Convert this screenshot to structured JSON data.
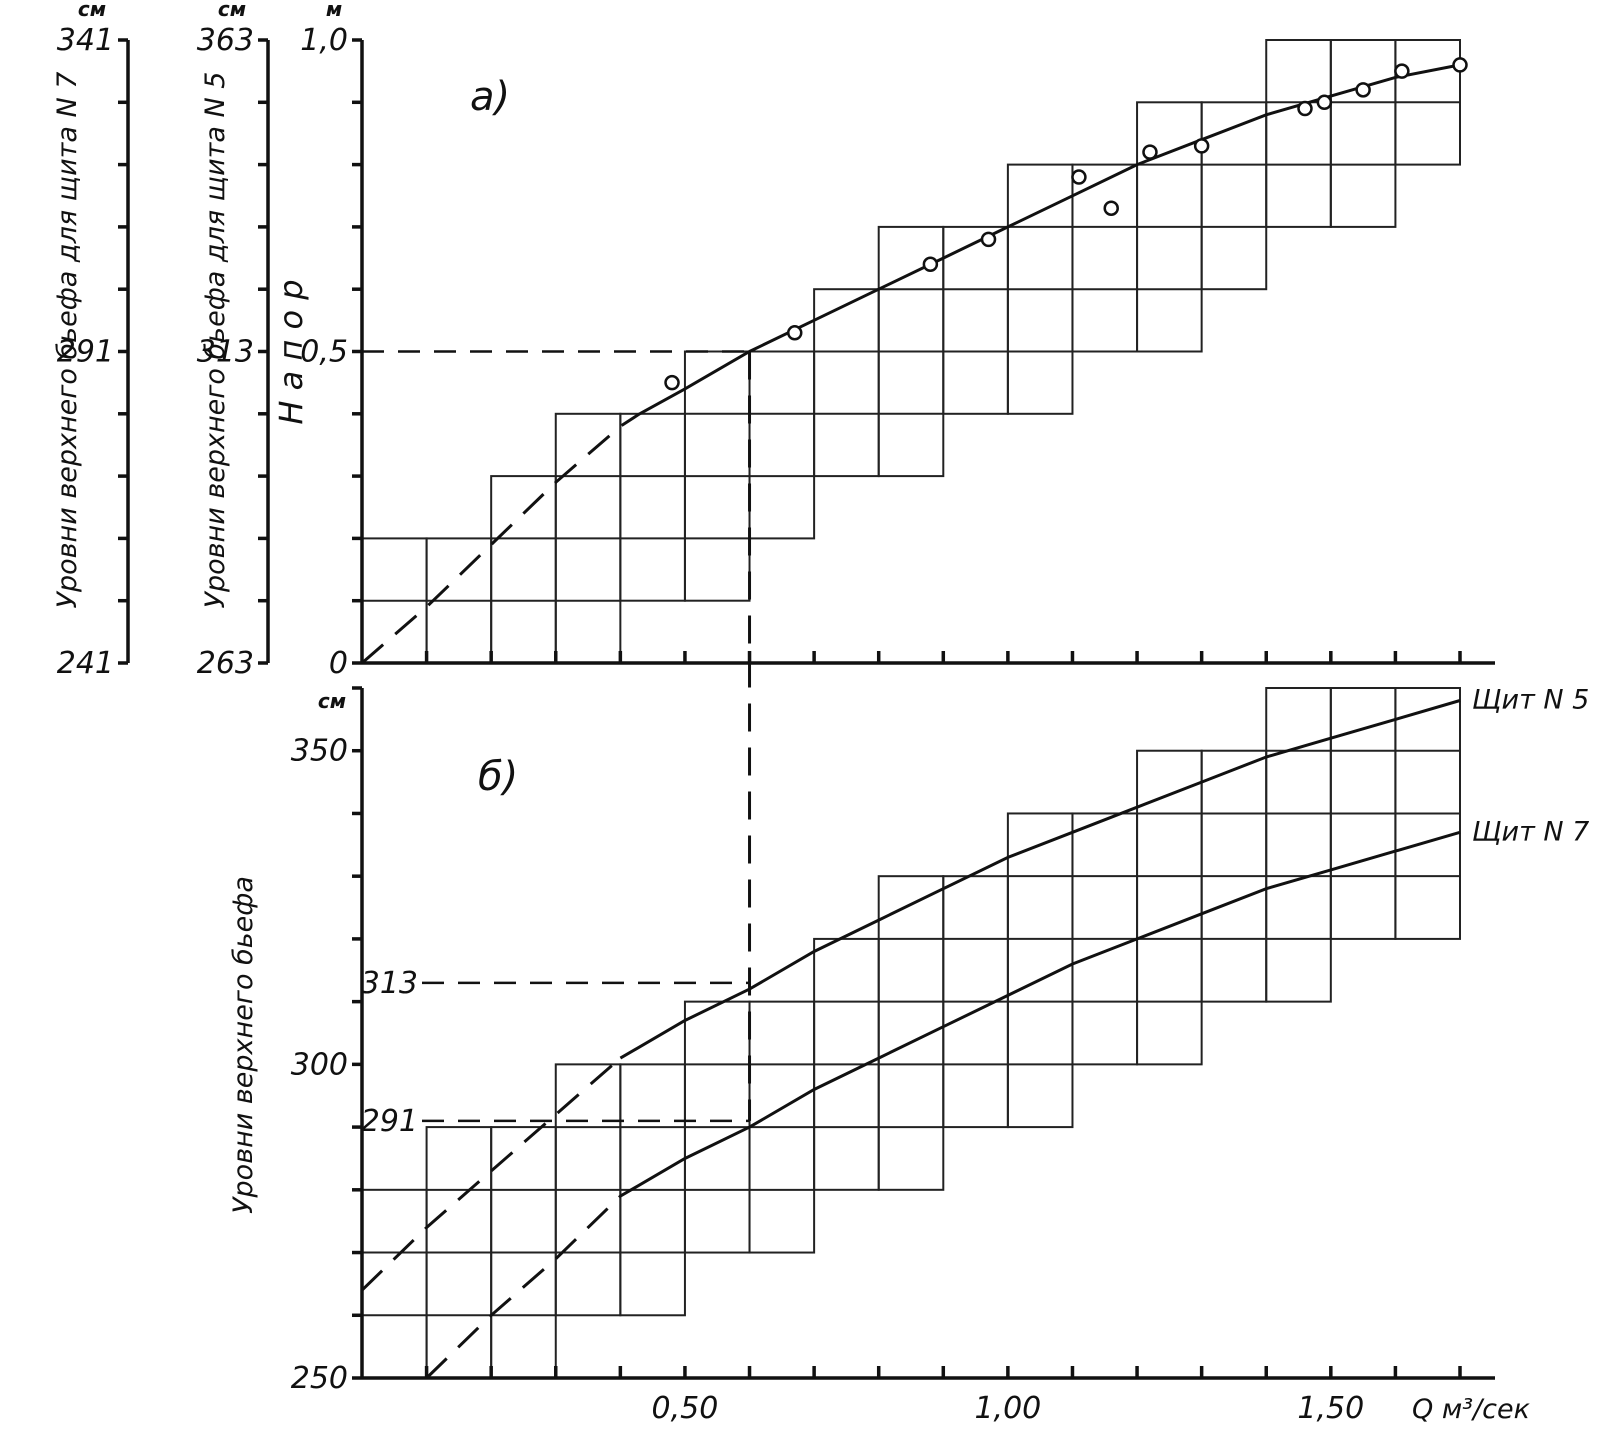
{
  "chart_data": [
    {
      "id": "a",
      "type": "line",
      "panel_label": "а)",
      "ylabel": "Н а п о р",
      "yunit": "м",
      "ylim": [
        0,
        1.0
      ],
      "xlim": [
        0.0,
        1.7
      ],
      "yticks": [
        "0",
        "0,5",
        "1,0"
      ],
      "left_axes": [
        {
          "unit": "см",
          "label": "Уровни верхнего бьефа для щита N 5",
          "ticks": [
            "263",
            "313",
            "363"
          ],
          "range": [
            263,
            363
          ]
        },
        {
          "unit": "см",
          "label": "Уровни верхнего бьефа для щита N 7",
          "ticks": [
            "241",
            "291",
            "341"
          ],
          "range": [
            241,
            341
          ]
        }
      ],
      "series": [
        {
          "style": "solid-with-dashed-extension",
          "dashed": [
            [
              0.0,
              0.0
            ],
            [
              0.1,
              0.09
            ],
            [
              0.2,
              0.19
            ],
            [
              0.3,
              0.29
            ],
            [
              0.4,
              0.38
            ],
            [
              0.43,
              0.4
            ]
          ],
          "solid": [
            [
              0.43,
              0.4
            ],
            [
              0.5,
              0.44
            ],
            [
              0.6,
              0.5
            ],
            [
              0.7,
              0.55
            ],
            [
              0.8,
              0.6
            ],
            [
              0.9,
              0.65
            ],
            [
              1.0,
              0.7
            ],
            [
              1.1,
              0.75
            ],
            [
              1.2,
              0.8
            ],
            [
              1.3,
              0.84
            ],
            [
              1.4,
              0.88
            ],
            [
              1.5,
              0.91
            ],
            [
              1.6,
              0.94
            ],
            [
              1.7,
              0.96
            ]
          ]
        }
      ],
      "points": [
        [
          0.48,
          0.45
        ],
        [
          0.67,
          0.53
        ],
        [
          0.88,
          0.64
        ],
        [
          0.97,
          0.68
        ],
        [
          1.11,
          0.78
        ],
        [
          1.16,
          0.73
        ],
        [
          1.22,
          0.82
        ],
        [
          1.3,
          0.83
        ],
        [
          1.46,
          0.89
        ],
        [
          1.49,
          0.9
        ],
        [
          1.55,
          0.92
        ],
        [
          1.61,
          0.95
        ],
        [
          1.7,
          0.96
        ]
      ],
      "reference_lines": [
        {
          "y": 0.5,
          "x": 0.6
        }
      ]
    },
    {
      "id": "b",
      "type": "line",
      "panel_label": "б)",
      "ylabel": "Уровни верхнего бьефа",
      "yunit": "см",
      "ylim": [
        250,
        360
      ],
      "xlim": [
        0.0,
        1.7
      ],
      "xticks": [
        "0,50",
        "1,00",
        "1,50"
      ],
      "xtick_values": [
        0.5,
        1.0,
        1.5
      ],
      "xlabel": "Q м³/сек",
      "yticks": [
        "250",
        "300",
        "350"
      ],
      "ytick_values": [
        250,
        300,
        350
      ],
      "annotations": [
        "313",
        "291"
      ],
      "series": [
        {
          "name": "Щит N 5",
          "dashed": [
            [
              0.0,
              264
            ],
            [
              0.1,
              274
            ],
            [
              0.2,
              283
            ],
            [
              0.3,
              292
            ],
            [
              0.4,
              301
            ]
          ],
          "solid": [
            [
              0.4,
              301
            ],
            [
              0.5,
              307
            ],
            [
              0.6,
              312
            ],
            [
              0.7,
              318
            ],
            [
              0.8,
              323
            ],
            [
              0.9,
              328
            ],
            [
              1.0,
              333
            ],
            [
              1.1,
              337
            ],
            [
              1.2,
              341
            ],
            [
              1.3,
              345
            ],
            [
              1.4,
              349
            ],
            [
              1.5,
              352
            ],
            [
              1.6,
              355
            ],
            [
              1.7,
              358
            ]
          ]
        },
        {
          "name": "Щит N 7",
          "dashed": [
            [
              0.1,
              250
            ],
            [
              0.2,
              260
            ],
            [
              0.3,
              269
            ],
            [
              0.4,
              279
            ]
          ],
          "solid": [
            [
              0.4,
              279
            ],
            [
              0.5,
              285
            ],
            [
              0.6,
              290
            ],
            [
              0.7,
              296
            ],
            [
              0.8,
              301
            ],
            [
              0.9,
              306
            ],
            [
              1.0,
              311
            ],
            [
              1.1,
              316
            ],
            [
              1.2,
              320
            ],
            [
              1.3,
              324
            ],
            [
              1.4,
              328
            ],
            [
              1.5,
              331
            ],
            [
              1.6,
              334
            ],
            [
              1.7,
              337
            ]
          ]
        }
      ],
      "reference_lines": [
        {
          "y": 313,
          "x": 0.6
        },
        {
          "y": 291,
          "x": 0.6
        }
      ]
    }
  ]
}
